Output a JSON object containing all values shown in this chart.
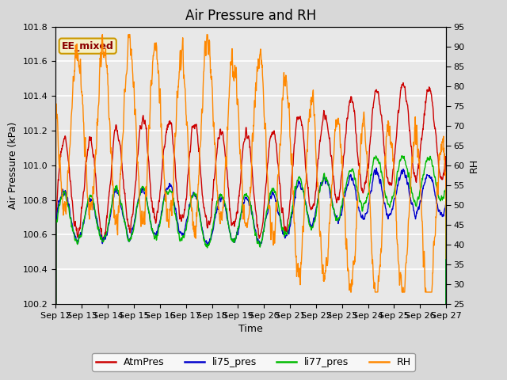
{
  "title": "Air Pressure and RH",
  "xlabel": "Time",
  "ylabel_left": "Air Pressure (kPa)",
  "ylabel_right": "RH",
  "annotation": "EE_mixed",
  "ylim_left": [
    100.2,
    101.8
  ],
  "ylim_right": [
    25,
    95
  ],
  "yticks_left": [
    100.2,
    100.4,
    100.6,
    100.8,
    101.0,
    101.2,
    101.4,
    101.6,
    101.8
  ],
  "yticks_right": [
    25,
    30,
    35,
    40,
    45,
    50,
    55,
    60,
    65,
    70,
    75,
    80,
    85,
    90,
    95
  ],
  "xtick_labels": [
    "Sep 12",
    "Sep 13",
    "Sep 14",
    "Sep 15",
    "Sep 16",
    "Sep 17",
    "Sep 18",
    "Sep 19",
    "Sep 20",
    "Sep 21",
    "Sep 22",
    "Sep 23",
    "Sep 24",
    "Sep 25",
    "Sep 26",
    "Sep 27"
  ],
  "colors": {
    "AtmPres": "#cc0000",
    "li75_pres": "#0000cc",
    "li77_pres": "#00bb00",
    "RH": "#ff8800"
  },
  "bg_color": "#d8d8d8",
  "plot_bg_color": "#e8e8e8",
  "title_fontsize": 12,
  "label_fontsize": 9,
  "tick_fontsize": 8,
  "annotation_fontsize": 9,
  "lw": 1.0
}
